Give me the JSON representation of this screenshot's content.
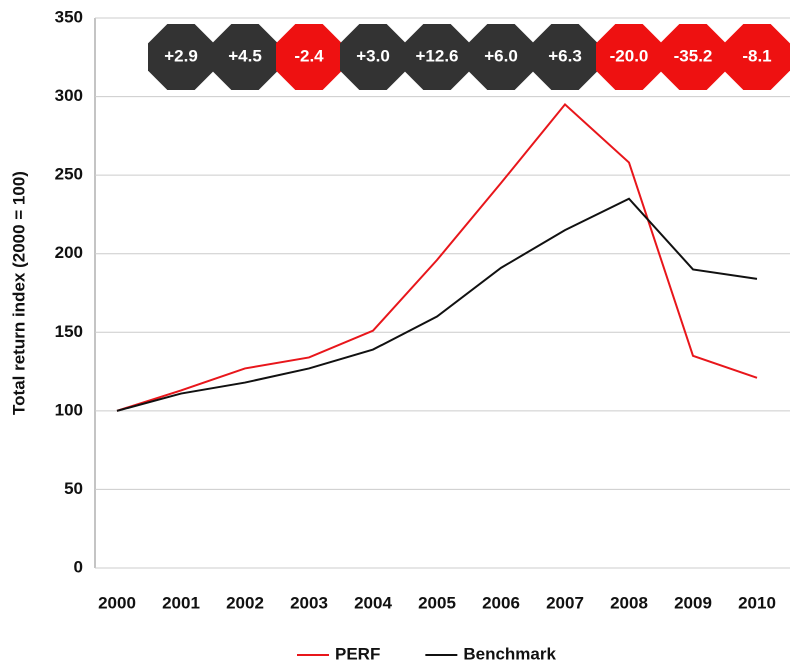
{
  "chart_data": {
    "type": "line",
    "y_label": "Total return index (2000 = 100)",
    "categories": [
      "2000",
      "2001",
      "2002",
      "2003",
      "2004",
      "2005",
      "2006",
      "2007",
      "2008",
      "2009",
      "2010"
    ],
    "series": [
      {
        "name": "PERF",
        "color": "#e8161b",
        "values": [
          100,
          113,
          127,
          134,
          151,
          196,
          245,
          295,
          258,
          135,
          121
        ]
      },
      {
        "name": "Benchmark",
        "color": "#111111",
        "values": [
          100,
          111,
          118,
          127,
          139,
          160,
          191,
          215,
          235,
          190,
          184
        ]
      }
    ],
    "badges": {
      "values": [
        2.9,
        4.5,
        -2.4,
        3.0,
        12.6,
        6.0,
        6.3,
        -20.0,
        -35.2,
        -8.1
      ],
      "value_labels": [
        "+2.9",
        "+4.5",
        "-2.4",
        "+3.0",
        "+12.6",
        "+6.0",
        "+6.3",
        "-20.0",
        "-35.2",
        "-8.1"
      ],
      "colors": [
        "#333333",
        "#333333",
        "#ee1111",
        "#333333",
        "#333333",
        "#333333",
        "#333333",
        "#ee1111",
        "#ee1111",
        "#ee1111"
      ]
    },
    "ylim": [
      0,
      350
    ],
    "yticks": [
      0,
      50,
      100,
      150,
      200,
      250,
      300,
      350
    ],
    "grid": true,
    "legend": "bottom"
  }
}
